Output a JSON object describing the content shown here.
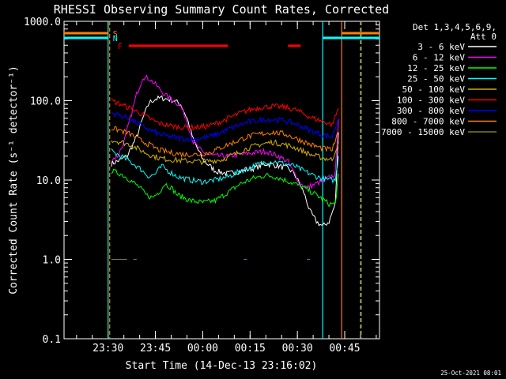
{
  "chart_data": {
    "type": "line",
    "title": "RHESSI Observing Summary Count Rates, Corrected",
    "xlabel": "Start Time (14-Dec-13 23:16:02)",
    "ylabel": "Corrected Count Rate (s⁻¹ detector⁻¹)",
    "y_scale": "log",
    "ylim": [
      0.1,
      1000
    ],
    "xlim_minutes_after_start": [
      0,
      100
    ],
    "x_ticks": [
      {
        "label": "23:30",
        "minute": 13.97
      },
      {
        "label": "23:45",
        "minute": 28.97
      },
      {
        "label": "00:00",
        "minute": 43.97
      },
      {
        "label": "00:15",
        "minute": 58.97
      },
      {
        "label": "00:30",
        "minute": 73.97
      },
      {
        "label": "00:45",
        "minute": 88.97
      }
    ],
    "y_ticks": [
      "0.1",
      "1.0",
      "10.0",
      "100.0",
      "1000.0"
    ],
    "legend_header": [
      "Det 1,3,4,5,6,9,",
      "Att 0"
    ],
    "legend_position": "right",
    "series": [
      {
        "name": "3 - 6 keV",
        "color": "#ffffff",
        "points": [
          [
            15,
            16
          ],
          [
            18,
            18
          ],
          [
            20,
            20
          ],
          [
            23,
            35
          ],
          [
            25,
            60
          ],
          [
            27,
            95
          ],
          [
            29,
            105
          ],
          [
            31,
            108
          ],
          [
            33,
            104
          ],
          [
            35,
            100
          ],
          [
            37,
            90
          ],
          [
            39,
            60
          ],
          [
            41,
            32
          ],
          [
            44,
            18
          ],
          [
            48,
            13
          ],
          [
            52,
            12
          ],
          [
            56,
            13
          ],
          [
            60,
            14
          ],
          [
            64,
            16
          ],
          [
            68,
            15
          ],
          [
            71,
            14
          ],
          [
            73,
            12
          ],
          [
            76,
            7
          ],
          [
            78,
            4
          ],
          [
            80,
            3
          ],
          [
            82,
            2.6
          ],
          [
            84,
            3
          ],
          [
            86,
            5
          ],
          [
            87,
            40
          ]
        ]
      },
      {
        "name": "6 - 12 keV",
        "color": "#ff00ff",
        "points": [
          [
            15,
            18
          ],
          [
            17,
            20
          ],
          [
            19,
            30
          ],
          [
            21,
            60
          ],
          [
            23,
            120
          ],
          [
            25,
            200
          ],
          [
            27,
            190
          ],
          [
            29,
            160
          ],
          [
            31,
            130
          ],
          [
            33,
            110
          ],
          [
            35,
            100
          ],
          [
            37,
            85
          ],
          [
            39,
            55
          ],
          [
            41,
            30
          ],
          [
            44,
            22
          ],
          [
            48,
            20
          ],
          [
            52,
            20
          ],
          [
            56,
            21
          ],
          [
            60,
            22
          ],
          [
            64,
            23
          ],
          [
            68,
            20
          ],
          [
            71,
            17
          ],
          [
            73,
            12
          ],
          [
            75,
            9
          ],
          [
            77,
            8
          ],
          [
            80,
            9
          ],
          [
            83,
            10
          ],
          [
            86,
            12
          ],
          [
            87,
            60
          ]
        ]
      },
      {
        "name": "12 - 25 keV",
        "color": "#00ff00",
        "points": [
          [
            15,
            13
          ],
          [
            18,
            12
          ],
          [
            21,
            10
          ],
          [
            24,
            8
          ],
          [
            26,
            6.5
          ],
          [
            28,
            6
          ],
          [
            30,
            7
          ],
          [
            32,
            9
          ],
          [
            34,
            8
          ],
          [
            36,
            6.5
          ],
          [
            40,
            5.5
          ],
          [
            44,
            5.2
          ],
          [
            48,
            5.5
          ],
          [
            52,
            7
          ],
          [
            56,
            9
          ],
          [
            60,
            10.5
          ],
          [
            64,
            11.5
          ],
          [
            67,
            11
          ],
          [
            70,
            10
          ],
          [
            73,
            9
          ],
          [
            76,
            8
          ],
          [
            80,
            6.5
          ],
          [
            84,
            5
          ],
          [
            86,
            5
          ],
          [
            87,
            12
          ]
        ]
      },
      {
        "name": "25 - 50 keV",
        "color": "#00ffff",
        "points": [
          [
            15,
            23
          ],
          [
            18,
            20
          ],
          [
            21,
            17
          ],
          [
            24,
            14
          ],
          [
            27,
            11
          ],
          [
            29,
            12
          ],
          [
            31,
            15
          ],
          [
            33,
            13
          ],
          [
            36,
            11
          ],
          [
            40,
            10
          ],
          [
            44,
            9.5
          ],
          [
            48,
            10
          ],
          [
            52,
            11
          ],
          [
            56,
            13
          ],
          [
            60,
            15
          ],
          [
            64,
            17
          ],
          [
            67,
            17
          ],
          [
            70,
            16
          ],
          [
            73,
            15
          ],
          [
            76,
            13
          ],
          [
            80,
            11
          ],
          [
            84,
            10
          ],
          [
            86,
            10
          ],
          [
            87,
            20
          ]
        ]
      },
      {
        "name": "50 - 100 keV",
        "color": "#d2b000",
        "points": [
          [
            15,
            32
          ],
          [
            18,
            30
          ],
          [
            21,
            28
          ],
          [
            24,
            24
          ],
          [
            27,
            21
          ],
          [
            30,
            19
          ],
          [
            34,
            18
          ],
          [
            38,
            17.5
          ],
          [
            44,
            17
          ],
          [
            50,
            18
          ],
          [
            54,
            21
          ],
          [
            58,
            25
          ],
          [
            62,
            28
          ],
          [
            66,
            30
          ],
          [
            70,
            28
          ],
          [
            74,
            25
          ],
          [
            78,
            21
          ],
          [
            82,
            19
          ],
          [
            85,
            18
          ],
          [
            87,
            30
          ]
        ]
      },
      {
        "name": "100 - 300 keV",
        "color": "#ff0000",
        "points": [
          [
            15,
            100
          ],
          [
            18,
            90
          ],
          [
            21,
            80
          ],
          [
            24,
            70
          ],
          [
            27,
            60
          ],
          [
            30,
            52
          ],
          [
            34,
            48
          ],
          [
            38,
            46
          ],
          [
            42,
            46
          ],
          [
            46,
            48
          ],
          [
            50,
            55
          ],
          [
            54,
            65
          ],
          [
            58,
            75
          ],
          [
            62,
            82
          ],
          [
            66,
            85
          ],
          [
            70,
            83
          ],
          [
            74,
            75
          ],
          [
            78,
            62
          ],
          [
            82,
            55
          ],
          [
            85,
            50
          ],
          [
            87,
            80
          ]
        ]
      },
      {
        "name": "300 - 800 keV",
        "color": "#0000ff",
        "points": [
          [
            15,
            70
          ],
          [
            18,
            65
          ],
          [
            21,
            58
          ],
          [
            24,
            50
          ],
          [
            27,
            43
          ],
          [
            30,
            38
          ],
          [
            34,
            35
          ],
          [
            38,
            33
          ],
          [
            42,
            33
          ],
          [
            46,
            35
          ],
          [
            50,
            40
          ],
          [
            54,
            47
          ],
          [
            58,
            53
          ],
          [
            62,
            57
          ],
          [
            66,
            58
          ],
          [
            70,
            56
          ],
          [
            74,
            50
          ],
          [
            78,
            42
          ],
          [
            82,
            37
          ],
          [
            85,
            35
          ],
          [
            87,
            60
          ]
        ]
      },
      {
        "name": "800 - 7000 keV",
        "color": "#ff8000",
        "points": [
          [
            15,
            45
          ],
          [
            18,
            42
          ],
          [
            21,
            38
          ],
          [
            24,
            32
          ],
          [
            27,
            28
          ],
          [
            30,
            24
          ],
          [
            34,
            22
          ],
          [
            38,
            21
          ],
          [
            42,
            21
          ],
          [
            46,
            22
          ],
          [
            50,
            26
          ],
          [
            54,
            30
          ],
          [
            58,
            35
          ],
          [
            62,
            38
          ],
          [
            66,
            40
          ],
          [
            70,
            38
          ],
          [
            74,
            33
          ],
          [
            78,
            28
          ],
          [
            82,
            25
          ],
          [
            85,
            24
          ],
          [
            87,
            40
          ]
        ]
      },
      {
        "name": "7000 - 15000 keV",
        "color": "#808000",
        "points": [
          [
            15,
            1.0
          ],
          [
            19,
            1.0
          ],
          [
            22,
            1.0
          ],
          [
            57,
            1.0
          ],
          [
            77,
            1.0
          ]
        ]
      }
    ],
    "flags": [
      {
        "label": "S",
        "color": "#ff8000",
        "segments": [
          [
            0,
            13.97
          ],
          [
            88,
            100
          ]
        ]
      },
      {
        "label": "N",
        "color": "#00ffff",
        "segments": [
          [
            0,
            13.97
          ],
          [
            82,
            100
          ]
        ]
      },
      {
        "label": "F",
        "color": "#ff0000",
        "segments": [
          [
            20.5,
            52
          ],
          [
            71,
            75
          ]
        ]
      }
    ],
    "footer_date": "25-Oct-2021 08:01"
  }
}
